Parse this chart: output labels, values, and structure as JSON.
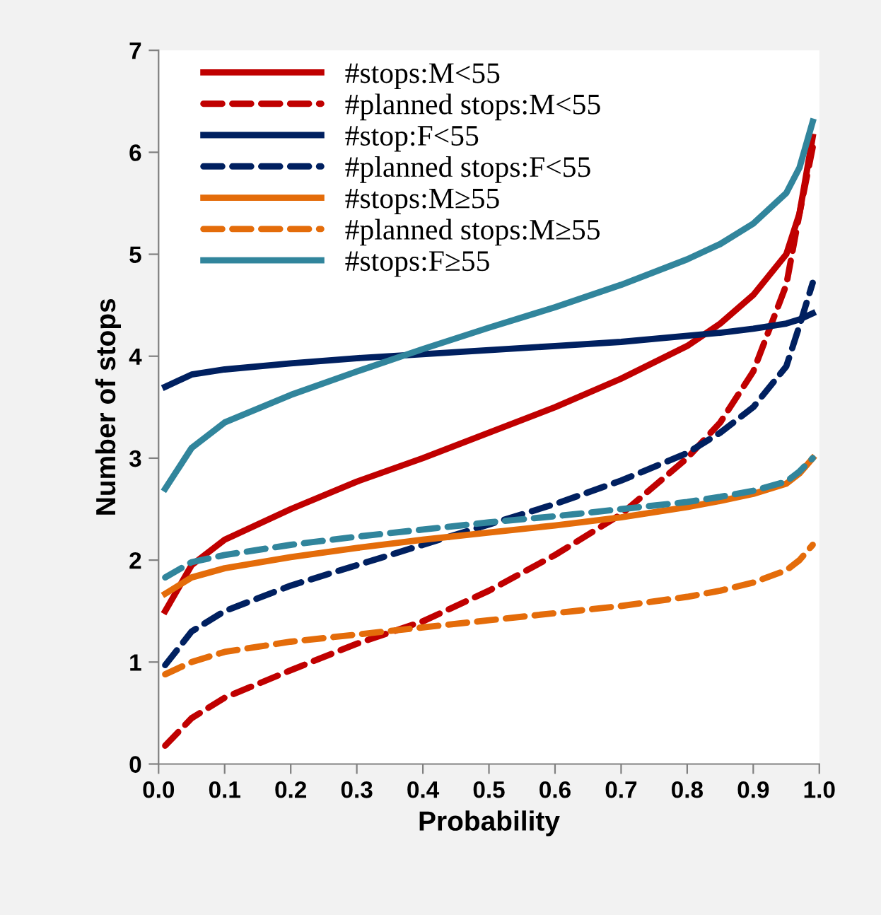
{
  "chart_data": {
    "type": "line",
    "xlabel": "Probability",
    "ylabel": "Number of stops",
    "x": [
      0.01,
      0.05,
      0.1,
      0.2,
      0.3,
      0.4,
      0.5,
      0.6,
      0.7,
      0.8,
      0.85,
      0.9,
      0.95,
      0.97,
      0.99
    ],
    "series": [
      {
        "name": "#stops:M<55",
        "color": "#c00000",
        "line_style": "solid",
        "values": [
          1.5,
          1.95,
          2.2,
          2.5,
          2.77,
          3.0,
          3.25,
          3.5,
          3.78,
          4.1,
          4.32,
          4.6,
          5.0,
          5.4,
          6.15
        ]
      },
      {
        "name": "#planned stops:M<55",
        "color": "#c00000",
        "line_style": "dashed",
        "values": [
          0.18,
          0.45,
          0.65,
          0.92,
          1.18,
          1.4,
          1.7,
          2.05,
          2.45,
          3.0,
          3.35,
          3.85,
          4.7,
          5.4,
          6.05
        ]
      },
      {
        "name": "#stop:F<55",
        "color": "#002060",
        "line_style": "solid",
        "values": [
          3.7,
          3.82,
          3.87,
          3.93,
          3.98,
          4.02,
          4.06,
          4.1,
          4.14,
          4.2,
          4.23,
          4.27,
          4.32,
          4.36,
          4.42
        ]
      },
      {
        "name": "#planned stops:F<55",
        "color": "#002060",
        "line_style": "dashed",
        "values": [
          0.97,
          1.3,
          1.5,
          1.75,
          1.95,
          2.15,
          2.35,
          2.55,
          2.78,
          3.05,
          3.25,
          3.5,
          3.9,
          4.3,
          4.72
        ]
      },
      {
        "name": "#stops:M≥55",
        "color": "#e46c0a",
        "line_style": "solid",
        "values": [
          1.67,
          1.83,
          1.92,
          2.03,
          2.12,
          2.2,
          2.27,
          2.34,
          2.42,
          2.52,
          2.58,
          2.65,
          2.75,
          2.85,
          3.0
        ]
      },
      {
        "name": "#planned stops:M≥55",
        "color": "#e46c0a",
        "line_style": "dashed",
        "values": [
          0.88,
          1.0,
          1.1,
          1.2,
          1.27,
          1.34,
          1.41,
          1.48,
          1.55,
          1.64,
          1.7,
          1.78,
          1.9,
          2.0,
          2.15
        ]
      },
      {
        "name": "#stops:F≥55",
        "color": "#31859c",
        "line_style": "solid",
        "values": [
          2.7,
          3.1,
          3.35,
          3.62,
          3.85,
          4.07,
          4.28,
          4.48,
          4.7,
          4.95,
          5.1,
          5.3,
          5.6,
          5.85,
          6.3
        ]
      },
      {
        "color": "#31859c",
        "line_style": "dashed",
        "values": [
          1.83,
          1.98,
          2.05,
          2.15,
          2.23,
          2.3,
          2.37,
          2.43,
          2.5,
          2.57,
          2.62,
          2.68,
          2.77,
          2.87,
          3.0
        ]
      }
    ],
    "xlim": [
      0,
      1
    ],
    "ylim": [
      0,
      7
    ],
    "xticks": [
      {
        "value": 0,
        "label": "0.0"
      },
      0.1,
      0.2,
      0.3,
      0.4,
      0.5,
      0.6,
      0.7,
      0.8,
      0.9,
      {
        "value": 1,
        "label": "1.0"
      }
    ],
    "yticks": [
      0,
      1,
      2,
      3,
      4,
      5,
      6,
      7
    ],
    "grid": false,
    "legend": "top left",
    "marker": "none"
  }
}
